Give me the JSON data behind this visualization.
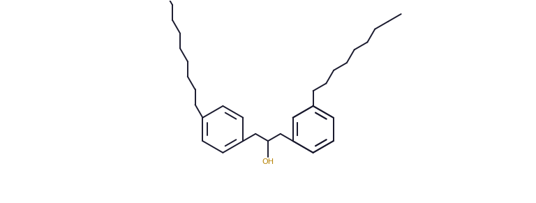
{
  "bg_color": "#ffffff",
  "line_color": "#1a1a2e",
  "oh_color": "#b8860b",
  "line_width": 1.4,
  "figsize": [
    7.68,
    2.91
  ],
  "dpi": 100
}
